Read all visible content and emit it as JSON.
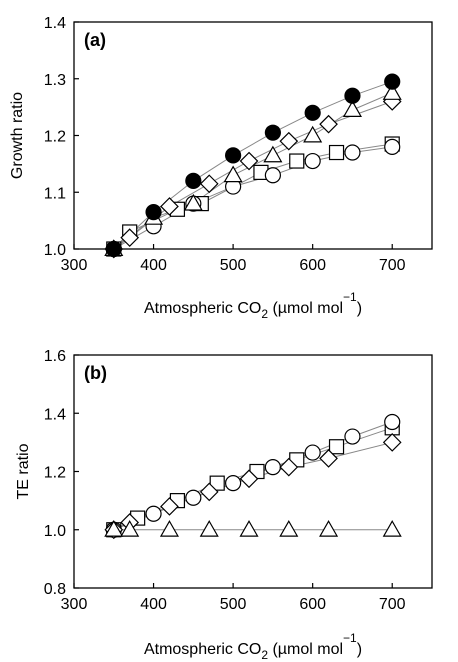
{
  "chart_data": [
    {
      "type": "line",
      "panel_label": "(a)",
      "ylabel": "Growth ratio",
      "xlabel": {
        "main": "Atmospheric CO",
        "sub": "2",
        "unit_pre": " (µmol mol",
        "sup": "−1",
        "unit_post": ")"
      },
      "xlim": [
        300,
        750
      ],
      "ylim": [
        1.0,
        1.4
      ],
      "xticks": [
        "300",
        "400",
        "500",
        "600",
        "700"
      ],
      "yticks": [
        "1.0",
        "1.1",
        "1.2",
        "1.3",
        "1.4"
      ],
      "ytick_values": [
        1.0,
        1.1,
        1.2,
        1.3,
        1.4
      ],
      "xtick_values": [
        300,
        400,
        500,
        600,
        700
      ],
      "grid": false,
      "series": [
        {
          "marker": "square",
          "fill": "#ffffff",
          "x": [
            350,
            370,
            430,
            460,
            535,
            580,
            630,
            700
          ],
          "y": [
            1.0,
            1.03,
            1.07,
            1.08,
            1.135,
            1.155,
            1.17,
            1.185
          ]
        },
        {
          "marker": "circle",
          "fill": "#ffffff",
          "x": [
            350,
            400,
            450,
            500,
            550,
            600,
            650,
            700
          ],
          "y": [
            1.0,
            1.04,
            1.08,
            1.11,
            1.13,
            1.155,
            1.17,
            1.18
          ]
        },
        {
          "marker": "diamond",
          "fill": "#ffffff",
          "x": [
            350,
            370,
            420,
            470,
            520,
            570,
            620,
            700
          ],
          "y": [
            1.0,
            1.02,
            1.075,
            1.115,
            1.155,
            1.19,
            1.22,
            1.26
          ]
        },
        {
          "marker": "triangle",
          "fill": "#ffffff",
          "x": [
            350,
            400,
            450,
            500,
            550,
            600,
            650,
            700
          ],
          "y": [
            1.0,
            1.055,
            1.08,
            1.13,
            1.165,
            1.2,
            1.245,
            1.275
          ]
        },
        {
          "marker": "circle",
          "fill": "#000000",
          "x": [
            350,
            400,
            450,
            500,
            550,
            600,
            650,
            700
          ],
          "y": [
            1.0,
            1.065,
            1.12,
            1.165,
            1.205,
            1.24,
            1.27,
            1.295
          ]
        }
      ]
    },
    {
      "type": "line",
      "panel_label": "(b)",
      "ylabel": "TE ratio",
      "xlabel": {
        "main": "Atmospheric CO",
        "sub": "2",
        "unit_pre": " (µmol mol",
        "sup": "−1",
        "unit_post": ")"
      },
      "xlim": [
        300,
        750
      ],
      "ylim": [
        0.8,
        1.6
      ],
      "xticks": [
        "300",
        "400",
        "500",
        "600",
        "700"
      ],
      "yticks": [
        "0.8",
        "1.0",
        "1.2",
        "1.4",
        "1.6"
      ],
      "ytick_values": [
        0.8,
        1.0,
        1.2,
        1.4,
        1.6
      ],
      "xtick_values": [
        300,
        400,
        500,
        600,
        700
      ],
      "grid": false,
      "series": [
        {
          "marker": "square",
          "fill": "#ffffff",
          "x": [
            350,
            380,
            430,
            480,
            530,
            580,
            630,
            700
          ],
          "y": [
            1.0,
            1.04,
            1.1,
            1.16,
            1.2,
            1.24,
            1.285,
            1.35
          ]
        },
        {
          "marker": "circle",
          "fill": "#ffffff",
          "x": [
            350,
            400,
            450,
            500,
            550,
            600,
            650,
            700
          ],
          "y": [
            1.0,
            1.055,
            1.11,
            1.16,
            1.215,
            1.265,
            1.32,
            1.37
          ]
        },
        {
          "marker": "diamond",
          "fill": "#ffffff",
          "x": [
            350,
            370,
            420,
            470,
            520,
            570,
            620,
            700
          ],
          "y": [
            1.0,
            1.025,
            1.08,
            1.13,
            1.175,
            1.215,
            1.245,
            1.3
          ]
        },
        {
          "marker": "triangle",
          "fill": "#ffffff",
          "x": [
            350,
            370,
            420,
            470,
            520,
            570,
            620,
            700
          ],
          "y": [
            1.0,
            1.0,
            1.0,
            1.0,
            1.0,
            1.0,
            1.0,
            1.0
          ]
        }
      ]
    }
  ]
}
